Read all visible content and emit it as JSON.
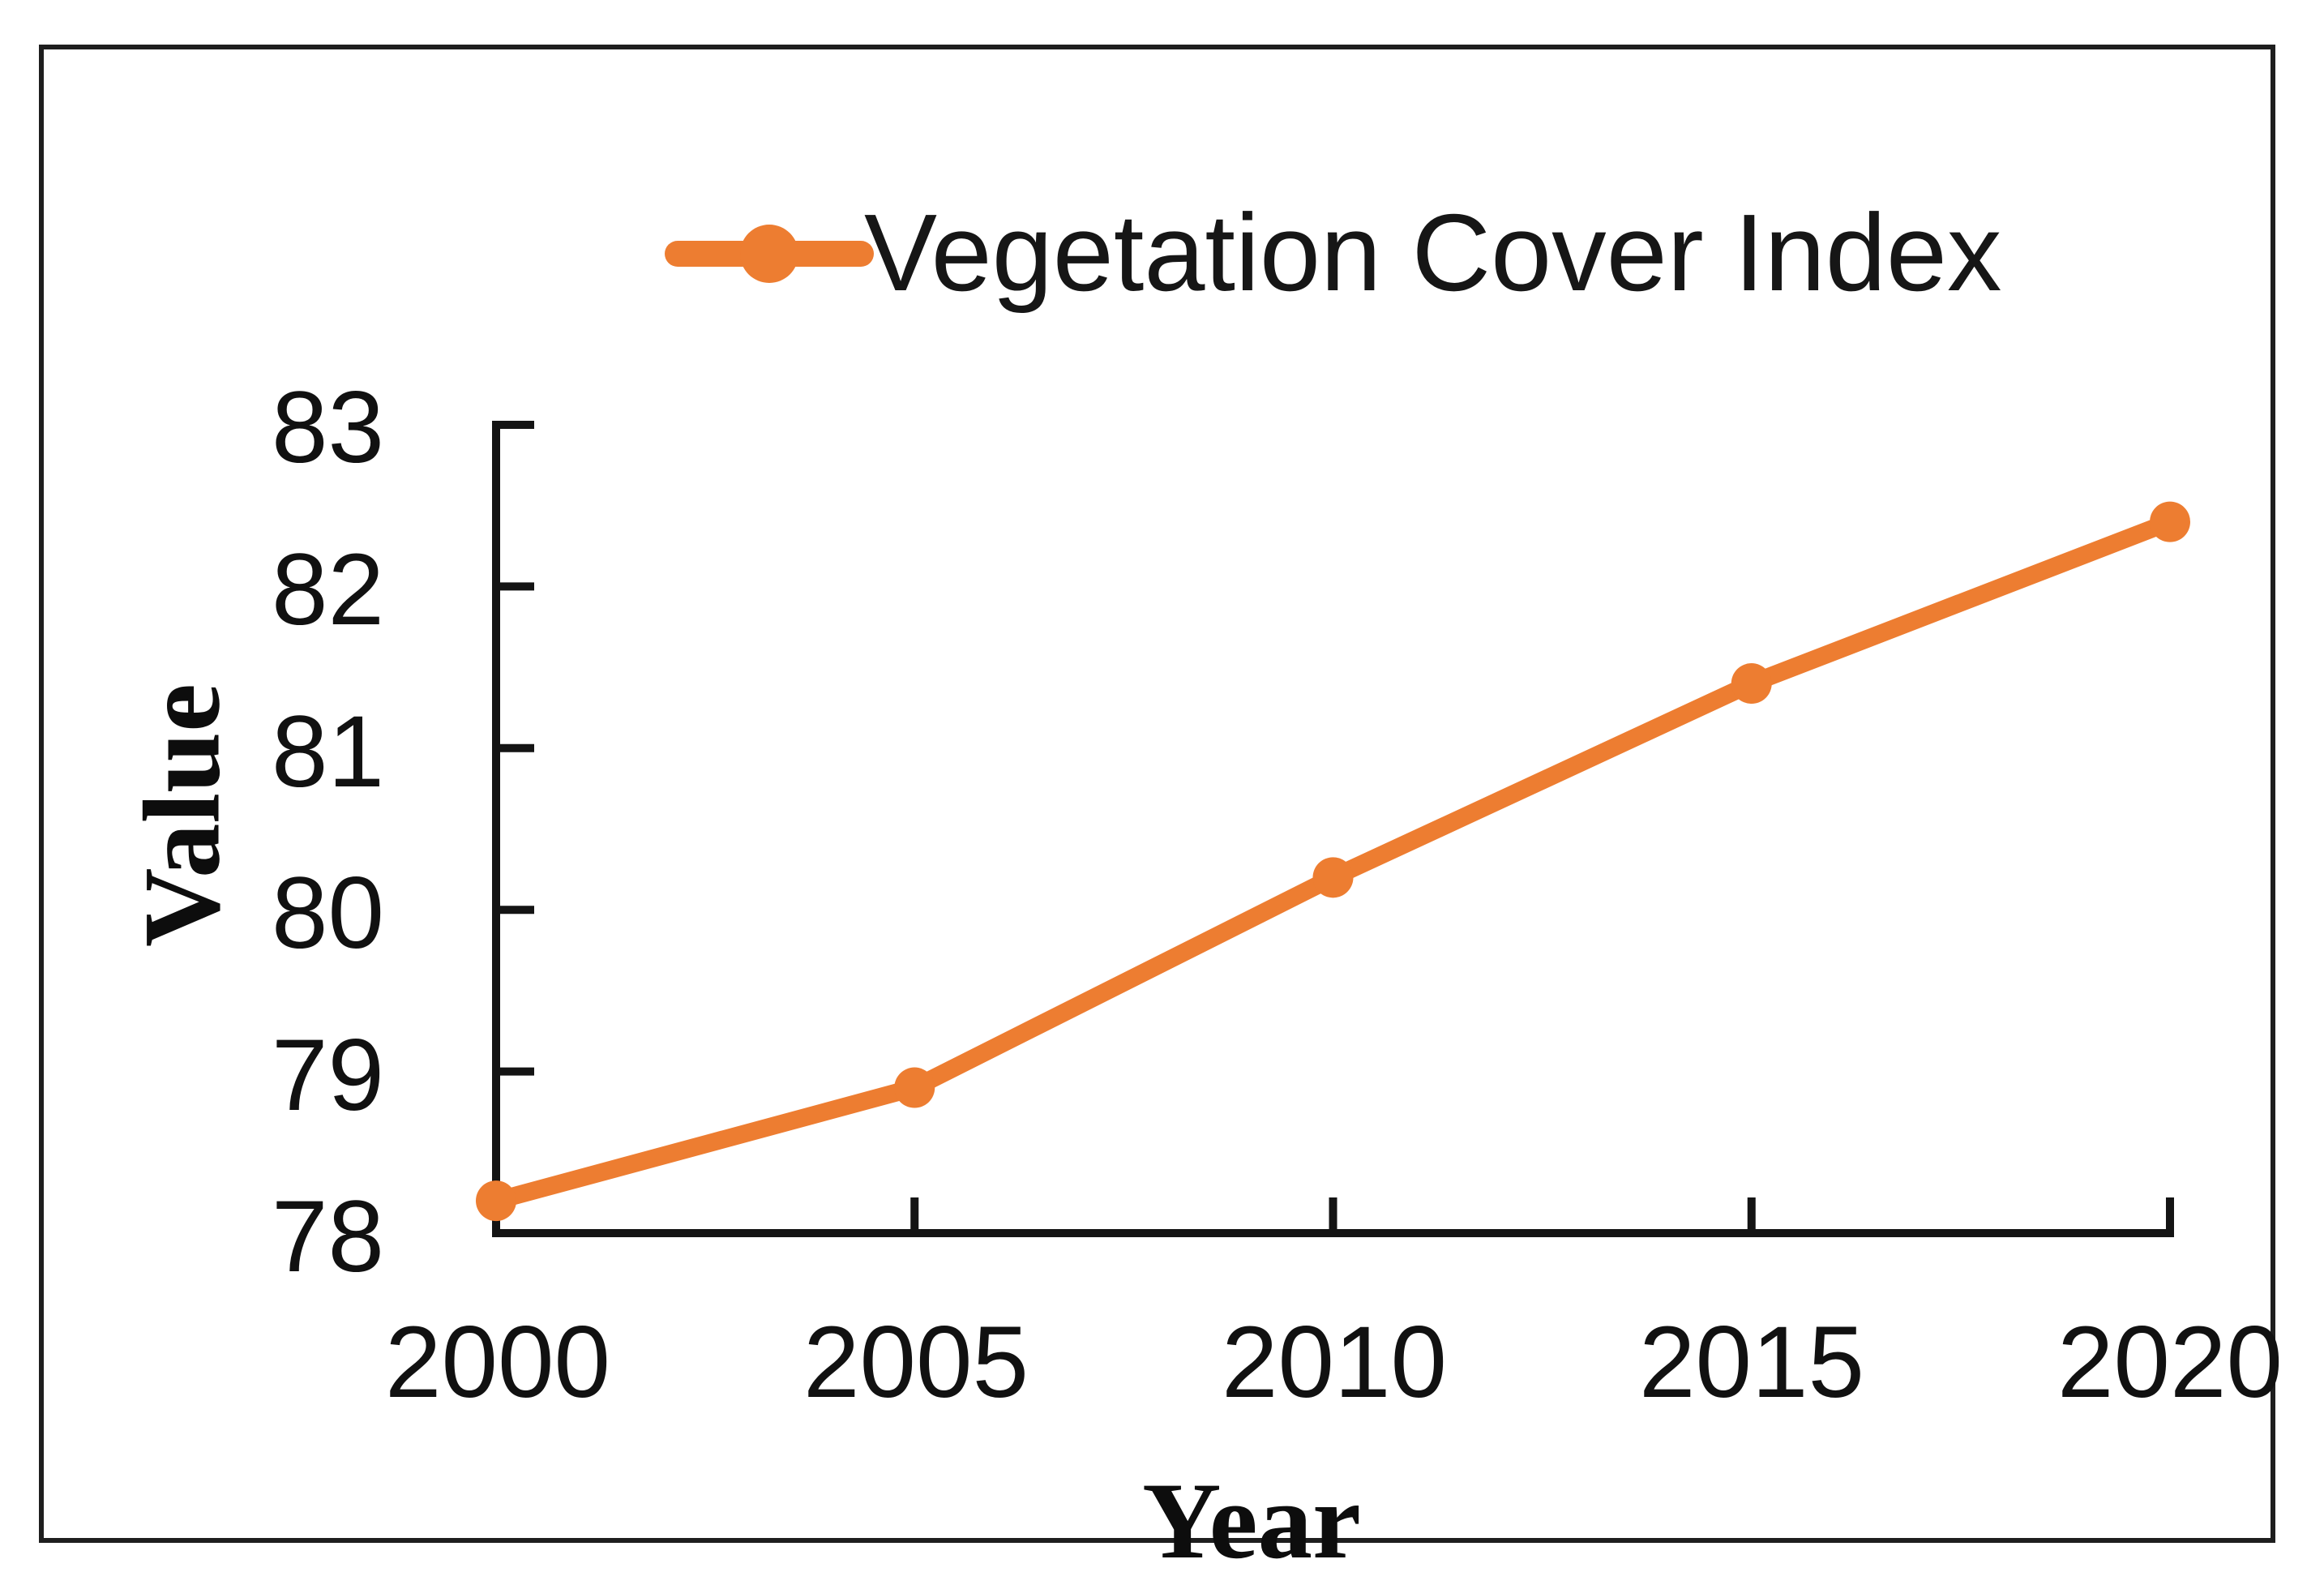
{
  "chart_data": {
    "type": "line",
    "title": "",
    "legend_label": "Vegetation Cover Index",
    "legend_position": "top-center",
    "xlabel": "Year",
    "ylabel": "Value",
    "x": [
      2000,
      2005,
      2010,
      2015,
      2020
    ],
    "x_tick_labels": [
      "2000",
      "2005",
      "2010",
      "2015",
      "2020"
    ],
    "xlim": [
      2000,
      2020
    ],
    "y_ticks": [
      78,
      79,
      80,
      81,
      82,
      83
    ],
    "y_tick_labels": [
      "78",
      "79",
      "80",
      "81",
      "82",
      "83"
    ],
    "ylim": [
      78,
      83
    ],
    "grid": false,
    "series": [
      {
        "name": "Vegetation Cover Index",
        "values": [
          78.2,
          78.9,
          80.2,
          81.4,
          82.4
        ],
        "color": "#ED7D31",
        "marker": "circle"
      }
    ],
    "axis_color": "#141414"
  }
}
